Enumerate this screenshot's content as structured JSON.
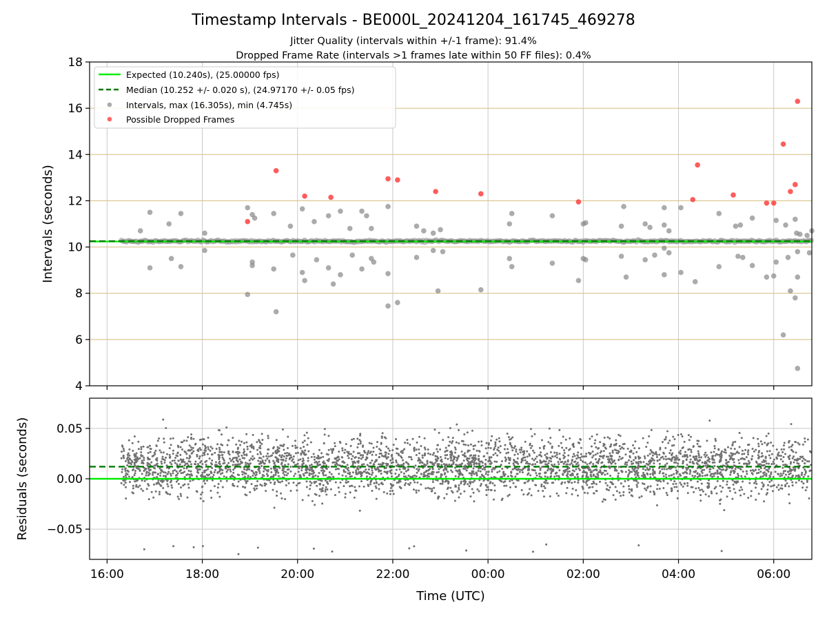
{
  "header": {
    "title": "Timestamp Intervals - BE000L_20241204_161745_469278",
    "subtitle_1": "Jitter Quality (intervals within +/-1 frame): 91.4%",
    "subtitle_2": "Dropped Frame Rate (intervals >1 frames late within 50 FF files): 0.4%"
  },
  "colors": {
    "expected": "#00ee00",
    "median": "#007a00",
    "interval_point": "#888888",
    "dropped_point": "#ff4040",
    "residual_point": "#707070",
    "grid_vertical": "#c8c8c8",
    "grid_horizontal_top": "#d6c48a"
  },
  "chart_data": [
    {
      "type": "scatter",
      "panel": "intervals",
      "ylabel": "Intervals (seconds)",
      "ylim": [
        4,
        18
      ],
      "yticks": [
        "4",
        "6",
        "8",
        "10",
        "12",
        "14",
        "16",
        "18"
      ],
      "xlim_hours": [
        15.633,
        30.8
      ],
      "grid": true,
      "expected_line": 10.24,
      "median_line": 10.252,
      "legend": {
        "placement": "upper-left",
        "entries": [
          "Expected (10.240s), (25.00000 fps)",
          "Median (10.252 +/- 0.020 s), (24.97170 +/- 0.05 fps)",
          "Intervals, max (16.305s), min (4.745s)",
          "Possible Dropped Frames"
        ]
      },
      "band": {
        "x_start_hours": 16.3,
        "x_end_hours": 30.8,
        "y_center": 10.25
      },
      "outliers": [
        [
          16.7,
          10.7
        ],
        [
          16.9,
          9.1
        ],
        [
          16.9,
          11.5
        ],
        [
          17.3,
          11.0
        ],
        [
          17.35,
          9.5
        ],
        [
          17.55,
          9.15
        ],
        [
          17.55,
          11.45
        ],
        [
          18.05,
          10.6
        ],
        [
          18.05,
          9.85
        ],
        [
          18.95,
          7.95
        ],
        [
          18.95,
          11.7
        ],
        [
          19.05,
          9.2
        ],
        [
          19.05,
          9.35
        ],
        [
          19.05,
          11.4
        ],
        [
          19.1,
          11.25
        ],
        [
          19.5,
          9.05
        ],
        [
          19.5,
          11.45
        ],
        [
          19.55,
          7.2
        ],
        [
          19.85,
          10.9
        ],
        [
          19.9,
          9.65
        ],
        [
          20.1,
          11.65
        ],
        [
          20.1,
          8.9
        ],
        [
          20.15,
          8.55
        ],
        [
          20.35,
          11.1
        ],
        [
          20.4,
          9.45
        ],
        [
          20.65,
          9.1
        ],
        [
          20.65,
          11.35
        ],
        [
          20.75,
          8.4
        ],
        [
          20.9,
          11.55
        ],
        [
          20.9,
          8.8
        ],
        [
          21.1,
          10.8
        ],
        [
          21.15,
          9.65
        ],
        [
          21.35,
          11.55
        ],
        [
          21.35,
          9.05
        ],
        [
          21.45,
          11.35
        ],
        [
          21.55,
          9.5
        ],
        [
          21.6,
          9.35
        ],
        [
          21.55,
          10.8
        ],
        [
          21.9,
          11.75
        ],
        [
          21.9,
          8.85
        ],
        [
          21.9,
          7.45
        ],
        [
          22.1,
          7.6
        ],
        [
          22.5,
          10.9
        ],
        [
          22.5,
          9.55
        ],
        [
          22.65,
          10.7
        ],
        [
          22.85,
          10.6
        ],
        [
          22.85,
          9.85
        ],
        [
          22.95,
          8.1
        ],
        [
          23.05,
          9.8
        ],
        [
          23.0,
          10.75
        ],
        [
          23.85,
          8.15
        ],
        [
          24.45,
          9.5
        ],
        [
          24.45,
          11.0
        ],
        [
          24.5,
          11.45
        ],
        [
          24.5,
          9.15
        ],
        [
          25.35,
          11.35
        ],
        [
          25.35,
          9.3
        ],
        [
          25.9,
          8.55
        ],
        [
          26.0,
          9.5
        ],
        [
          26.0,
          11.0
        ],
        [
          26.05,
          11.05
        ],
        [
          26.05,
          9.45
        ],
        [
          26.8,
          10.9
        ],
        [
          26.8,
          9.6
        ],
        [
          26.85,
          11.75
        ],
        [
          26.9,
          8.7
        ],
        [
          27.3,
          11.0
        ],
        [
          27.3,
          9.45
        ],
        [
          27.4,
          10.85
        ],
        [
          27.5,
          9.65
        ],
        [
          27.7,
          11.7
        ],
        [
          27.7,
          8.8
        ],
        [
          27.7,
          10.95
        ],
        [
          27.7,
          9.95
        ],
        [
          27.8,
          10.7
        ],
        [
          27.8,
          9.75
        ],
        [
          28.05,
          11.7
        ],
        [
          28.05,
          8.9
        ],
        [
          28.35,
          8.5
        ],
        [
          28.85,
          11.45
        ],
        [
          28.85,
          9.15
        ],
        [
          29.2,
          10.9
        ],
        [
          29.25,
          9.6
        ],
        [
          29.3,
          10.95
        ],
        [
          29.35,
          9.55
        ],
        [
          29.55,
          11.25
        ],
        [
          29.55,
          9.2
        ],
        [
          29.85,
          8.7
        ],
        [
          30.0,
          8.75
        ],
        [
          30.05,
          11.15
        ],
        [
          30.05,
          9.35
        ],
        [
          30.2,
          6.2
        ],
        [
          30.25,
          10.95
        ],
        [
          30.3,
          9.55
        ],
        [
          30.35,
          8.1
        ],
        [
          30.45,
          7.8
        ],
        [
          30.45,
          11.2
        ],
        [
          30.48,
          10.6
        ],
        [
          30.5,
          9.8
        ],
        [
          30.5,
          4.75
        ],
        [
          30.5,
          8.7
        ],
        [
          30.55,
          10.55
        ],
        [
          30.7,
          10.5
        ],
        [
          30.75,
          9.75
        ],
        [
          30.8,
          10.7
        ]
      ],
      "dropped": [
        [
          18.95,
          11.1
        ],
        [
          19.55,
          13.3
        ],
        [
          20.15,
          12.2
        ],
        [
          20.7,
          12.15
        ],
        [
          21.9,
          12.95
        ],
        [
          22.1,
          12.9
        ],
        [
          22.9,
          12.4
        ],
        [
          23.85,
          12.3
        ],
        [
          25.9,
          11.95
        ],
        [
          28.3,
          12.05
        ],
        [
          28.4,
          13.55
        ],
        [
          29.15,
          12.25
        ],
        [
          29.85,
          11.9
        ],
        [
          30.0,
          11.9
        ],
        [
          30.2,
          14.45
        ],
        [
          30.35,
          12.4
        ],
        [
          30.45,
          12.7
        ],
        [
          30.5,
          16.3
        ]
      ]
    },
    {
      "type": "scatter",
      "panel": "residuals",
      "ylabel": "Residuals (seconds)",
      "xlabel": "Time (UTC)",
      "ylim": [
        -0.08,
        0.08
      ],
      "yticks": [
        "−0.05",
        "0.00",
        "0.05"
      ],
      "ytick_values": [
        -0.05,
        0.0,
        0.05
      ],
      "xlim_hours": [
        15.633,
        30.8
      ],
      "xticks": [
        "16:00",
        "18:00",
        "20:00",
        "22:00",
        "00:00",
        "02:00",
        "04:00",
        "06:00"
      ],
      "xtick_hours": [
        16,
        18,
        20,
        22,
        24,
        26,
        28,
        30
      ],
      "grid": true,
      "expected_line": 0.0,
      "median_line": 0.012,
      "x_start_hours": 16.3,
      "x_end_hours": 30.8
    }
  ]
}
